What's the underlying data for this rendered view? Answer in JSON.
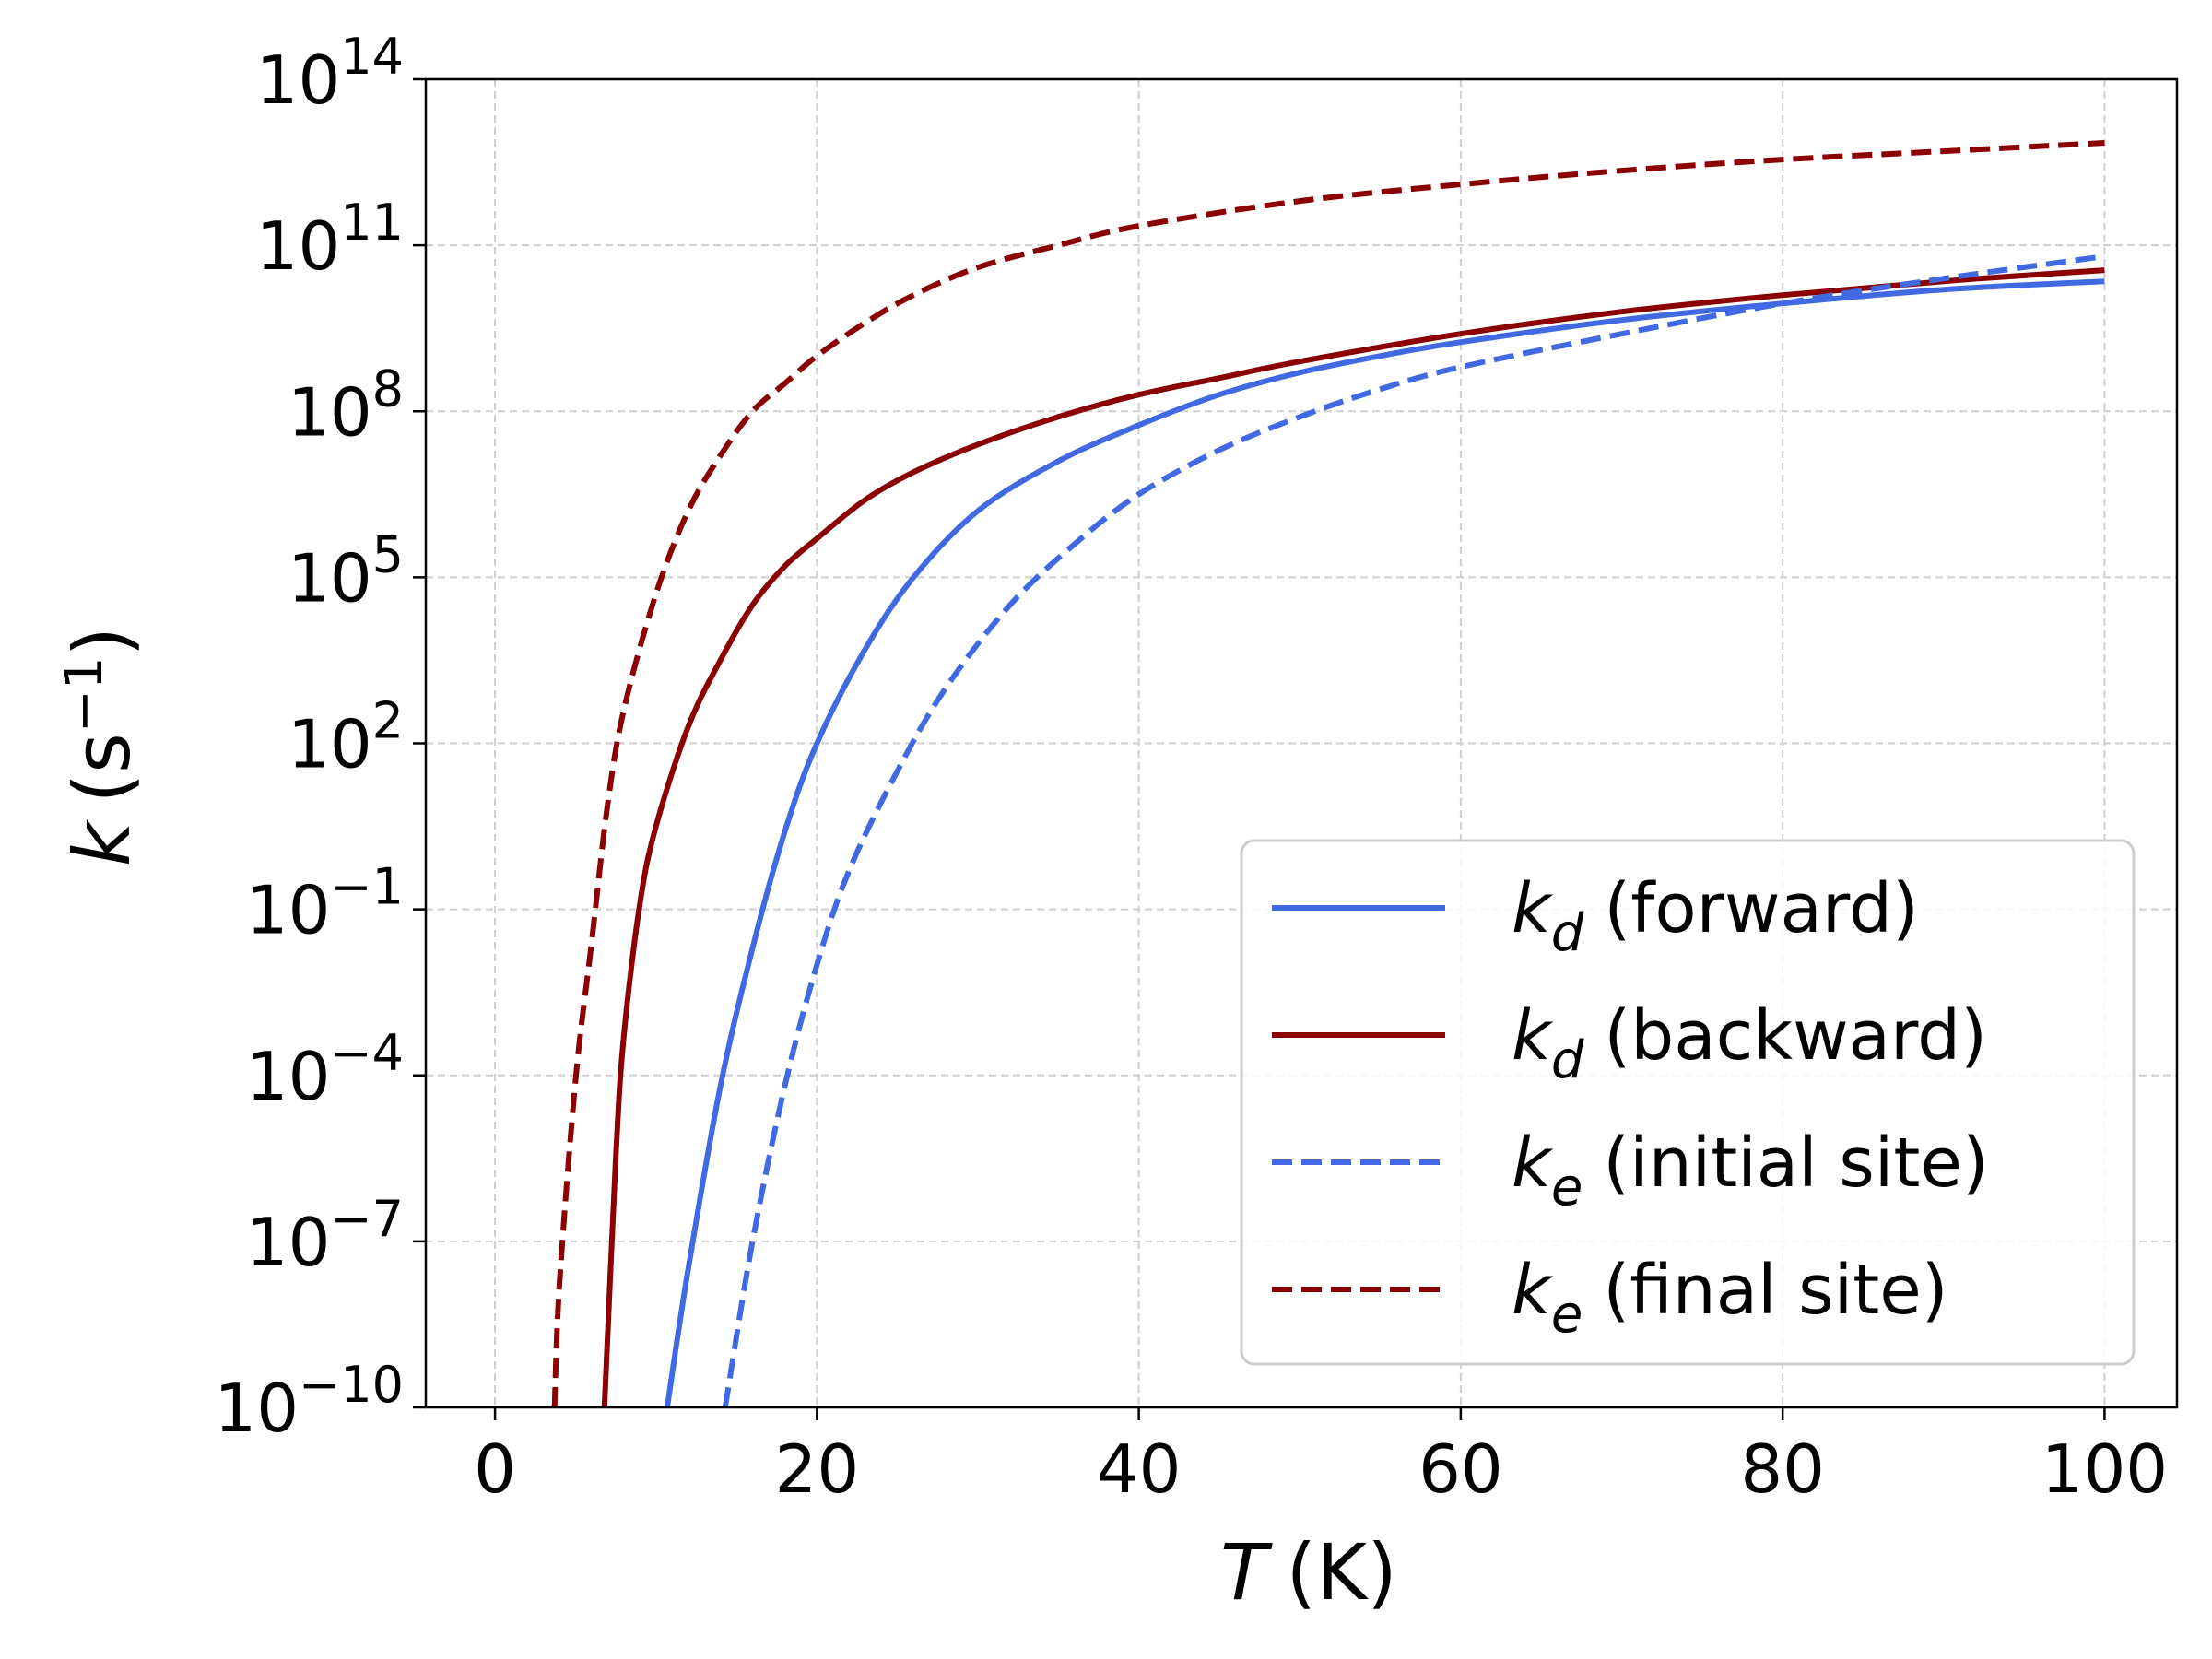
{
  "chart_data": {
    "type": "line",
    "title": "",
    "xlabel": {
      "symbol": "T",
      "unit": "(K)"
    },
    "ylabel": {
      "symbol": "k",
      "unit_base": "(s",
      "unit_exp": "−1",
      "unit_close": ")"
    },
    "xlim": [
      -4.3,
      104.5
    ],
    "ylim_log10": [
      -10,
      14
    ],
    "grid": true,
    "legend_position": "lower-right",
    "x_ticks": [
      {
        "value": 0,
        "label": "0"
      },
      {
        "value": 20,
        "label": "20"
      },
      {
        "value": 40,
        "label": "40"
      },
      {
        "value": 60,
        "label": "60"
      },
      {
        "value": 80,
        "label": "80"
      },
      {
        "value": 100,
        "label": "100"
      }
    ],
    "y_ticks": [
      {
        "exp": -10,
        "base": "10",
        "sup": "−10"
      },
      {
        "exp": -7,
        "base": "10",
        "sup": "−7"
      },
      {
        "exp": -4,
        "base": "10",
        "sup": "−4"
      },
      {
        "exp": -1,
        "base": "10",
        "sup": "−1"
      },
      {
        "exp": 2,
        "base": "10",
        "sup": "2"
      },
      {
        "exp": 5,
        "base": "10",
        "sup": "5"
      },
      {
        "exp": 8,
        "base": "10",
        "sup": "8"
      },
      {
        "exp": 11,
        "base": "10",
        "sup": "11"
      },
      {
        "exp": 14,
        "base": "10",
        "sup": "14"
      }
    ],
    "series": [
      {
        "name": "k_d (forward)",
        "label_symbol": "k",
        "label_sub": "d",
        "label_text": "(forward)",
        "color": "#4169e1",
        "dashed": false,
        "x": [
          10.7,
          12,
          14,
          16,
          18,
          20,
          23,
          26,
          30,
          35,
          40,
          45,
          50,
          55,
          60,
          70,
          80,
          90,
          100
        ],
        "log10": [
          -10,
          -7.5,
          -4.2,
          -1.7,
          0.4,
          2.0,
          3.7,
          5.0,
          6.2,
          7.1,
          7.75,
          8.3,
          8.7,
          9.0,
          9.25,
          9.65,
          9.95,
          10.2,
          10.35
        ]
      },
      {
        "name": "k_d (backward)",
        "label_symbol": "k",
        "label_sub": "d",
        "label_text": "(backward)",
        "color": "#8b0000",
        "dashed": false,
        "x": [
          6.8,
          7.5,
          8,
          9,
          10,
          12,
          14,
          16,
          18,
          20,
          23,
          26,
          30,
          35,
          40,
          45,
          50,
          60,
          70,
          80,
          90,
          100
        ],
        "log10": [
          -10,
          -5.5,
          -3.3,
          -0.9,
          0.5,
          2.3,
          3.5,
          4.5,
          5.2,
          5.7,
          6.4,
          6.9,
          7.4,
          7.9,
          8.3,
          8.6,
          8.9,
          9.4,
          9.8,
          10.1,
          10.35,
          10.55
        ]
      },
      {
        "name": "k_e (initial site)",
        "label_symbol": "k",
        "label_sub": "e",
        "label_text": "(initial site)",
        "color": "#4169e1",
        "dashed": true,
        "x": [
          14.3,
          16,
          18,
          20,
          22,
          25,
          28,
          32,
          36,
          40,
          45,
          50,
          55,
          60,
          70,
          80,
          90,
          100
        ],
        "log10": [
          -10,
          -7.0,
          -4.2,
          -2.0,
          -0.3,
          1.5,
          3.0,
          4.5,
          5.6,
          6.5,
          7.3,
          7.9,
          8.4,
          8.8,
          9.4,
          9.95,
          10.4,
          10.8
        ]
      },
      {
        "name": "k_e (final site)",
        "label_symbol": "k",
        "label_sub": "e",
        "label_text": "(final site)",
        "color": "#8b0000",
        "dashed": true,
        "x": [
          3.7,
          4,
          5,
          6,
          7,
          8,
          10,
          12,
          14,
          16,
          18,
          20,
          23,
          26,
          30,
          35,
          40,
          50,
          60,
          70,
          80,
          90,
          100
        ],
        "log10": [
          -10,
          -7.8,
          -4.1,
          -1.6,
          0.9,
          2.6,
          4.7,
          6.2,
          7.2,
          8.0,
          8.5,
          9.0,
          9.6,
          10.1,
          10.6,
          11.0,
          11.35,
          11.8,
          12.1,
          12.35,
          12.55,
          12.7,
          12.85
        ]
      }
    ]
  }
}
